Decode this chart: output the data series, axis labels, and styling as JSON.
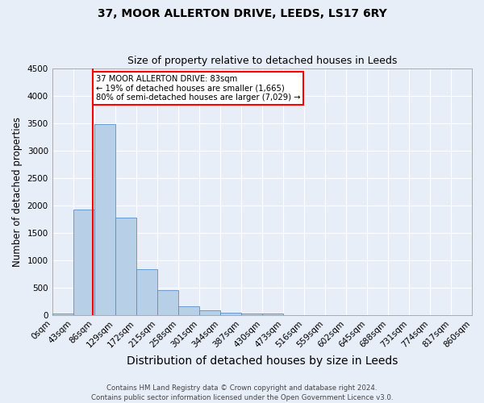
{
  "title1": "37, MOOR ALLERTON DRIVE, LEEDS, LS17 6RY",
  "title2": "Size of property relative to detached houses in Leeds",
  "xlabel": "Distribution of detached houses by size in Leeds",
  "ylabel": "Number of detached properties",
  "bin_labels": [
    "0sqm",
    "43sqm",
    "86sqm",
    "129sqm",
    "172sqm",
    "215sqm",
    "258sqm",
    "301sqm",
    "344sqm",
    "387sqm",
    "430sqm",
    "473sqm",
    "516sqm",
    "559sqm",
    "602sqm",
    "645sqm",
    "688sqm",
    "731sqm",
    "774sqm",
    "817sqm",
    "860sqm"
  ],
  "bar_values": [
    30,
    1920,
    3480,
    1780,
    830,
    460,
    155,
    90,
    48,
    35,
    25,
    0,
    0,
    0,
    0,
    0,
    0,
    0,
    0,
    0
  ],
  "bar_color": "#b8cfe8",
  "bar_edge_color": "#5b8ec4",
  "vline_color": "red",
  "annotation_text": "37 MOOR ALLERTON DRIVE: 83sqm\n← 19% of detached houses are smaller (1,665)\n80% of semi-detached houses are larger (7,029) →",
  "annotation_box_color": "white",
  "annotation_box_edgecolor": "red",
  "ylim": [
    0,
    4500
  ],
  "background_color": "#e8eef8",
  "grid_color": "white",
  "footer_text": "Contains HM Land Registry data © Crown copyright and database right 2024.\nContains public sector information licensed under the Open Government Licence v3.0.",
  "title1_fontsize": 10,
  "title2_fontsize": 9,
  "xlabel_fontsize": 10,
  "ylabel_fontsize": 8.5,
  "tick_fontsize": 7.5,
  "footer_fontsize": 6.2
}
